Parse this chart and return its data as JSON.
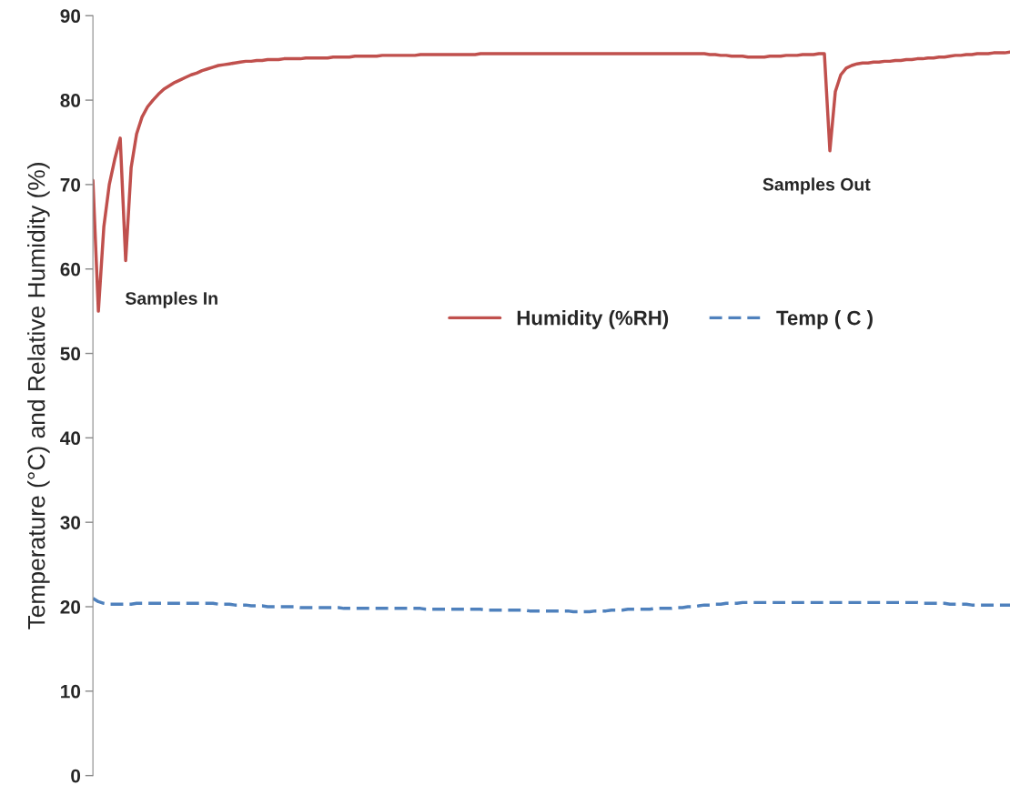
{
  "chart_data": {
    "type": "line",
    "ylabel": "Temperature (°C) and Relative Humidity (%)",
    "categories": [
      null,
      null,
      null,
      null,
      null,
      null,
      null,
      null,
      null,
      null,
      null,
      null,
      null,
      null,
      null,
      null,
      null,
      null,
      null,
      null,
      null,
      null,
      null,
      null,
      null,
      null,
      null,
      null,
      null,
      null,
      null,
      null,
      null,
      null,
      null,
      null,
      null,
      null,
      null,
      null,
      null,
      null,
      null,
      null,
      null,
      null,
      null,
      null,
      null,
      null,
      null,
      null,
      null,
      null,
      null,
      null,
      null,
      null,
      null,
      null,
      null,
      null,
      null,
      null,
      null,
      null,
      null,
      null,
      null,
      null,
      null,
      null,
      null,
      null,
      null,
      null,
      null,
      null,
      null,
      null,
      null,
      null,
      null,
      null,
      null,
      null,
      null,
      null,
      null,
      null,
      null,
      null,
      null,
      null,
      null,
      null,
      null,
      null,
      null,
      null,
      null,
      null,
      null,
      null,
      null,
      null,
      null,
      null,
      null,
      null,
      null,
      null,
      null,
      null,
      null,
      null,
      null,
      null,
      null,
      null,
      null,
      null,
      null,
      null,
      null,
      null,
      null,
      null,
      null,
      null,
      null,
      null,
      null,
      null,
      null,
      null,
      null,
      null,
      null,
      null,
      null,
      null,
      null,
      null,
      null,
      null,
      null,
      null,
      null,
      null,
      null,
      null,
      null,
      null,
      null,
      null,
      null,
      null,
      null,
      null,
      null,
      null,
      null,
      null,
      null,
      null,
      null,
      null,
      null
    ],
    "series": [
      {
        "name": "Humidity (%RH)",
        "color": "#c0504d",
        "line_style": "solid",
        "values": [
          70.5,
          55,
          65,
          70,
          73,
          75.5,
          61,
          72,
          76,
          78,
          79.2,
          80,
          80.7,
          81.3,
          81.7,
          82.1,
          82.4,
          82.7,
          83,
          83.2,
          83.5,
          83.7,
          83.9,
          84.1,
          84.2,
          84.3,
          84.4,
          84.5,
          84.6,
          84.6,
          84.7,
          84.7,
          84.8,
          84.8,
          84.8,
          84.9,
          84.9,
          84.9,
          84.9,
          85,
          85,
          85,
          85,
          85,
          85.1,
          85.1,
          85.1,
          85.1,
          85.2,
          85.2,
          85.2,
          85.2,
          85.2,
          85.3,
          85.3,
          85.3,
          85.3,
          85.3,
          85.3,
          85.3,
          85.4,
          85.4,
          85.4,
          85.4,
          85.4,
          85.4,
          85.4,
          85.4,
          85.4,
          85.4,
          85.4,
          85.5,
          85.5,
          85.5,
          85.5,
          85.5,
          85.5,
          85.5,
          85.5,
          85.5,
          85.5,
          85.5,
          85.5,
          85.5,
          85.5,
          85.5,
          85.5,
          85.5,
          85.5,
          85.5,
          85.5,
          85.5,
          85.5,
          85.5,
          85.5,
          85.5,
          85.5,
          85.5,
          85.5,
          85.5,
          85.5,
          85.5,
          85.5,
          85.5,
          85.5,
          85.5,
          85.5,
          85.5,
          85.5,
          85.5,
          85.5,
          85.5,
          85.5,
          85.4,
          85.4,
          85.3,
          85.3,
          85.2,
          85.2,
          85.2,
          85.1,
          85.1,
          85.1,
          85.1,
          85.2,
          85.2,
          85.2,
          85.3,
          85.3,
          85.3,
          85.4,
          85.4,
          85.4,
          85.5,
          85.5,
          74,
          81,
          83,
          83.8,
          84.1,
          84.3,
          84.4,
          84.4,
          84.5,
          84.5,
          84.6,
          84.6,
          84.7,
          84.7,
          84.8,
          84.8,
          84.9,
          84.9,
          85,
          85,
          85.1,
          85.1,
          85.2,
          85.3,
          85.3,
          85.4,
          85.4,
          85.5,
          85.5,
          85.5,
          85.6,
          85.6,
          85.6,
          85.7
        ]
      },
      {
        "name": "Temp ( C )",
        "color": "#4f81bd",
        "line_style": "dashed",
        "values": [
          21,
          20.6,
          20.4,
          20.3,
          20.3,
          20.3,
          20.3,
          20.3,
          20.4,
          20.4,
          20.4,
          20.4,
          20.4,
          20.4,
          20.4,
          20.4,
          20.4,
          20.4,
          20.4,
          20.4,
          20.4,
          20.4,
          20.4,
          20.3,
          20.3,
          20.3,
          20.2,
          20.2,
          20.2,
          20.1,
          20.1,
          20.1,
          20,
          20,
          20,
          20,
          20,
          20,
          19.9,
          19.9,
          19.9,
          19.9,
          19.9,
          19.9,
          19.9,
          19.9,
          19.8,
          19.8,
          19.8,
          19.8,
          19.8,
          19.8,
          19.8,
          19.8,
          19.8,
          19.8,
          19.8,
          19.8,
          19.8,
          19.8,
          19.8,
          19.7,
          19.7,
          19.7,
          19.7,
          19.7,
          19.7,
          19.7,
          19.7,
          19.7,
          19.7,
          19.7,
          19.6,
          19.6,
          19.6,
          19.6,
          19.6,
          19.6,
          19.6,
          19.6,
          19.5,
          19.5,
          19.5,
          19.5,
          19.5,
          19.5,
          19.5,
          19.5,
          19.4,
          19.4,
          19.4,
          19.4,
          19.5,
          19.5,
          19.5,
          19.6,
          19.6,
          19.6,
          19.7,
          19.7,
          19.7,
          19.7,
          19.7,
          19.8,
          19.8,
          19.8,
          19.8,
          19.9,
          19.9,
          20,
          20,
          20.1,
          20.2,
          20.2,
          20.3,
          20.3,
          20.4,
          20.4,
          20.4,
          20.5,
          20.5,
          20.5,
          20.5,
          20.5,
          20.5,
          20.5,
          20.5,
          20.5,
          20.5,
          20.5,
          20.5,
          20.5,
          20.5,
          20.5,
          20.5,
          20.5,
          20.5,
          20.5,
          20.5,
          20.5,
          20.5,
          20.5,
          20.5,
          20.5,
          20.5,
          20.5,
          20.5,
          20.5,
          20.5,
          20.5,
          20.5,
          20.5,
          20.4,
          20.4,
          20.4,
          20.4,
          20.4,
          20.3,
          20.3,
          20.3,
          20.3,
          20.2,
          20.2,
          20.2,
          20.2,
          20.2,
          20.2,
          20.2,
          20.2
        ]
      }
    ],
    "ylim": [
      0,
      90
    ],
    "yticks": [
      0,
      10,
      20,
      30,
      40,
      50,
      60,
      70,
      80,
      90
    ],
    "tick_labels": "y",
    "legend": "center",
    "annotations": [
      "Samples In",
      "Samples Out"
    ]
  }
}
